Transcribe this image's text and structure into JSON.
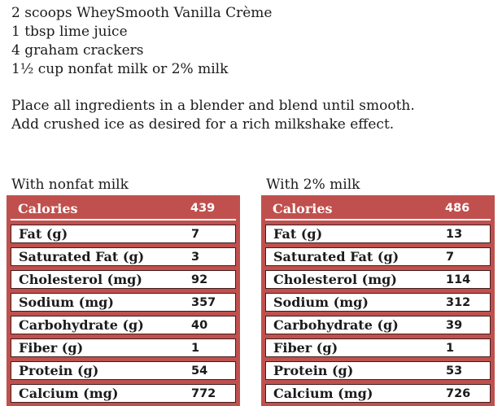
{
  "recipe": {
    "ingredients": [
      "2 scoops WheySmooth Vanilla Crème",
      "1 tbsp lime juice",
      "4 graham crackers",
      "1½ cup nonfat milk or 2% milk"
    ],
    "instructions": [
      "Place all ingredients in a blender and blend until smooth.",
      "Add crushed ice as desired for a rich milkshake effect."
    ]
  },
  "tables": [
    {
      "caption": "With nonfat milk",
      "header": {
        "label": "Calories",
        "value": "439"
      },
      "rows": [
        {
          "label": "Fat (g)",
          "value": "7"
        },
        {
          "label": "Saturated Fat (g)",
          "value": "3"
        },
        {
          "label": "Cholesterol (mg)",
          "value": "92"
        },
        {
          "label": "Sodium (mg)",
          "value": "357"
        },
        {
          "label": "Carbohydrate (g)",
          "value": "40"
        },
        {
          "label": "Fiber (g)",
          "value": "1"
        },
        {
          "label": "Protein (g)",
          "value": "54"
        },
        {
          "label": "Calcium (mg)",
          "value": "772"
        }
      ]
    },
    {
      "caption": "With 2% milk",
      "header": {
        "label": "Calories",
        "value": "486"
      },
      "rows": [
        {
          "label": "Fat (g)",
          "value": "13"
        },
        {
          "label": "Saturated Fat (g)",
          "value": "7"
        },
        {
          "label": "Cholesterol (mg)",
          "value": "114"
        },
        {
          "label": "Sodium (mg)",
          "value": "312"
        },
        {
          "label": "Carbohydrate (g)",
          "value": "39"
        },
        {
          "label": "Fiber (g)",
          "value": "1"
        },
        {
          "label": "Protein (g)",
          "value": "53"
        },
        {
          "label": "Calcium (mg)",
          "value": "726"
        }
      ]
    }
  ],
  "colors": {
    "table_red": "#C0504D",
    "cell_border": "#3F1D1C",
    "header_text": "#FFFFFF",
    "text_color": "#1B1B1B"
  }
}
